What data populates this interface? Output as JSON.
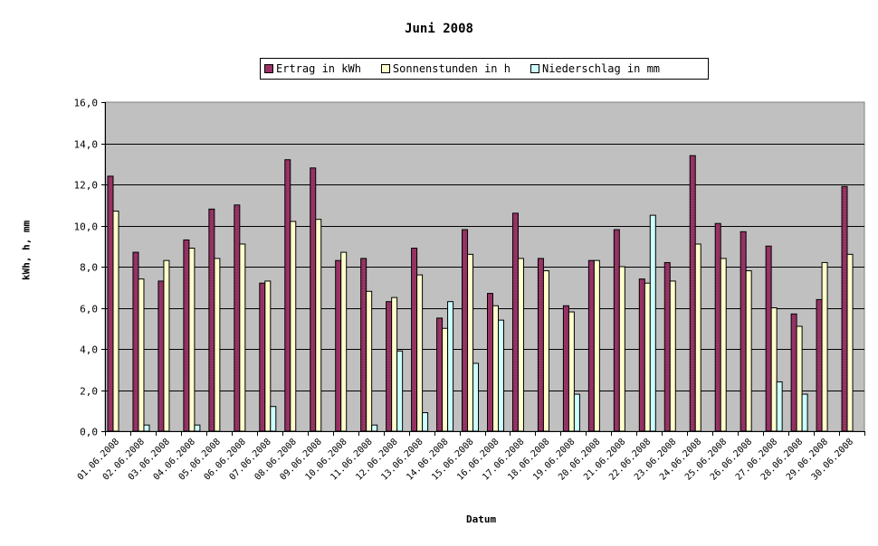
{
  "chart_data": {
    "type": "bar",
    "title": "Juni 2008",
    "xlabel": "Datum",
    "ylabel": "kWh, h, mm",
    "ylim": [
      0,
      16
    ],
    "yticks": [
      "0,0",
      "2,0",
      "4,0",
      "6,0",
      "8,0",
      "10,0",
      "12,0",
      "14,0",
      "16,0"
    ],
    "grid": true,
    "legend_position": "top",
    "categories": [
      "01.06.2008",
      "02.06.2008",
      "03.06.2008",
      "04.06.2008",
      "05.06.2008",
      "06.06.2008",
      "07.06.2008",
      "08.06.2008",
      "09.06.2008",
      "10.06.2008",
      "11.06.2008",
      "12.06.2008",
      "13.06.2008",
      "14.06.2008",
      "15.06.2008",
      "16.06.2008",
      "17.06.2008",
      "18.06.2008",
      "19.06.2008",
      "20.06.2008",
      "21.06.2008",
      "22.06.2008",
      "23.06.2008",
      "24.06.2008",
      "25.06.2008",
      "26.06.2008",
      "27.06.2008",
      "28.06.2008",
      "29.06.2008",
      "30.06.2008"
    ],
    "series": [
      {
        "name": "Ertrag in kWh",
        "color": "#993366",
        "values": [
          12.4,
          8.7,
          7.3,
          9.3,
          10.8,
          11.0,
          7.2,
          13.2,
          12.8,
          8.3,
          8.4,
          6.3,
          8.9,
          5.5,
          9.8,
          6.7,
          10.6,
          8.4,
          6.1,
          8.3,
          9.8,
          7.4,
          8.2,
          13.4,
          10.1,
          9.7,
          9.0,
          5.7,
          6.4,
          11.9
        ]
      },
      {
        "name": "Sonnenstunden in h",
        "color": "#FFFFCC",
        "values": [
          10.7,
          7.4,
          8.3,
          8.9,
          8.4,
          9.1,
          7.3,
          10.2,
          10.3,
          8.7,
          6.8,
          6.5,
          7.6,
          5.0,
          8.6,
          6.1,
          8.4,
          7.8,
          5.8,
          8.3,
          8.0,
          7.2,
          7.3,
          9.1,
          8.4,
          7.8,
          6.0,
          5.1,
          8.2,
          8.6
        ]
      },
      {
        "name": "Niederschlag in mm",
        "color": "#CCFFFF",
        "values": [
          0,
          0.3,
          0,
          0.3,
          0,
          0,
          1.2,
          0,
          0,
          0,
          0.3,
          3.9,
          0.9,
          6.3,
          3.3,
          5.4,
          0,
          0,
          1.8,
          0,
          0,
          10.5,
          0,
          0,
          0,
          0,
          2.4,
          1.8,
          0,
          0
        ]
      }
    ]
  },
  "colors": {
    "plot_background": "#C0C0C0",
    "gridline": "#000000"
  }
}
